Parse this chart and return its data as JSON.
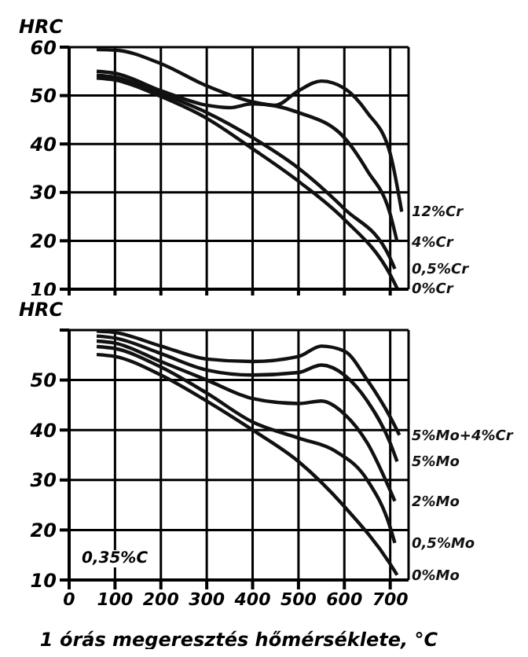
{
  "chart_data": [
    {
      "type": "line",
      "ylabel": "HRC",
      "x": [
        60,
        100,
        200,
        300,
        400,
        450,
        500,
        550,
        600,
        650,
        700,
        725
      ],
      "xlim": [
        0,
        740
      ],
      "xticks": [
        0,
        100,
        200,
        300,
        400,
        500,
        600,
        700
      ],
      "ylim": [
        10,
        60
      ],
      "yticks": [
        10,
        20,
        30,
        40,
        50,
        60
      ],
      "tick_labels": "y",
      "grid": true,
      "legend": false,
      "marker": "none",
      "line_style": "solid",
      "series": [
        {
          "name": "12%Cr",
          "color": "#111111",
          "values": [
            59.5,
            59.4,
            56.6,
            52,
            48.7,
            48,
            51,
            53,
            51.5,
            46.5,
            38,
            26
          ]
        },
        {
          "name": "4%Cr",
          "color": "#111111",
          "x": [
            60,
            100,
            200,
            300,
            350,
            400,
            500,
            600,
            650,
            700,
            715
          ],
          "values": [
            55,
            54.6,
            51,
            48,
            47.5,
            48.3,
            46.5,
            41.3,
            34.5,
            25.5,
            19.8
          ]
        },
        {
          "name": "0,5%Cr",
          "color": "#111111",
          "x": [
            60,
            100,
            200,
            300,
            400,
            500,
            600,
            700,
            710
          ],
          "values": [
            54.2,
            53.8,
            50.4,
            46.5,
            41.3,
            35,
            26.6,
            16.4,
            14.2
          ]
        },
        {
          "name": "0%Cr",
          "color": "#111111",
          "x": [
            60,
            100,
            200,
            300,
            400,
            500,
            600,
            700,
            715
          ],
          "values": [
            53.6,
            53.2,
            49.8,
            45.3,
            39,
            32.3,
            24.4,
            13,
            10.2
          ]
        }
      ]
    },
    {
      "type": "line",
      "ylabel": "HRC",
      "xlabel": "1 órás megeresztés hőmérséklete, °C",
      "x": [
        60,
        100,
        200,
        300,
        400,
        500,
        550,
        600,
        650,
        700,
        720
      ],
      "xlim": [
        0,
        740
      ],
      "xticks": [
        0,
        100,
        200,
        300,
        400,
        500,
        600,
        700
      ],
      "ylim": [
        10,
        60
      ],
      "yticks": [
        10,
        20,
        30,
        40,
        50,
        {
          "value": 60,
          "label": null
        }
      ],
      "grid": true,
      "legend": false,
      "marker": "none",
      "line_style": "solid",
      "annotations": [
        "0,35%C"
      ],
      "series": [
        {
          "name": "5%Mo+4%Cr",
          "color": "#111111",
          "values": [
            59.8,
            59.5,
            56.8,
            54.2,
            53.7,
            54.7,
            56.8,
            55.8,
            50,
            42.6,
            39
          ]
        },
        {
          "name": "5%Mo",
          "color": "#111111",
          "x": [
            60,
            100,
            200,
            300,
            400,
            500,
            550,
            600,
            650,
            700,
            715
          ],
          "values": [
            58.8,
            58.4,
            55.3,
            52,
            51,
            51.5,
            53,
            51,
            45.8,
            37.4,
            33.7
          ]
        },
        {
          "name": "2%Mo",
          "color": "#111111",
          "x": [
            60,
            100,
            200,
            300,
            400,
            500,
            550,
            600,
            650,
            700,
            710
          ],
          "values": [
            57.8,
            57.4,
            53.7,
            50,
            46.3,
            45.3,
            45.8,
            43.2,
            37.4,
            27.9,
            25.8
          ]
        },
        {
          "name": "0,5%Mo",
          "color": "#111111",
          "x": [
            60,
            100,
            200,
            300,
            400,
            500,
            580,
            650,
            700,
            710
          ],
          "values": [
            56.7,
            56.3,
            52.6,
            47.4,
            41.6,
            38.4,
            35.8,
            30,
            20.5,
            17.4
          ]
        },
        {
          "name": "0%Mo",
          "color": "#111111",
          "x": [
            60,
            100,
            200,
            300,
            400,
            500,
            600,
            700,
            715
          ],
          "values": [
            55.1,
            54.7,
            51,
            45.8,
            40,
            33.7,
            24.7,
            13.2,
            11
          ]
        }
      ]
    }
  ]
}
